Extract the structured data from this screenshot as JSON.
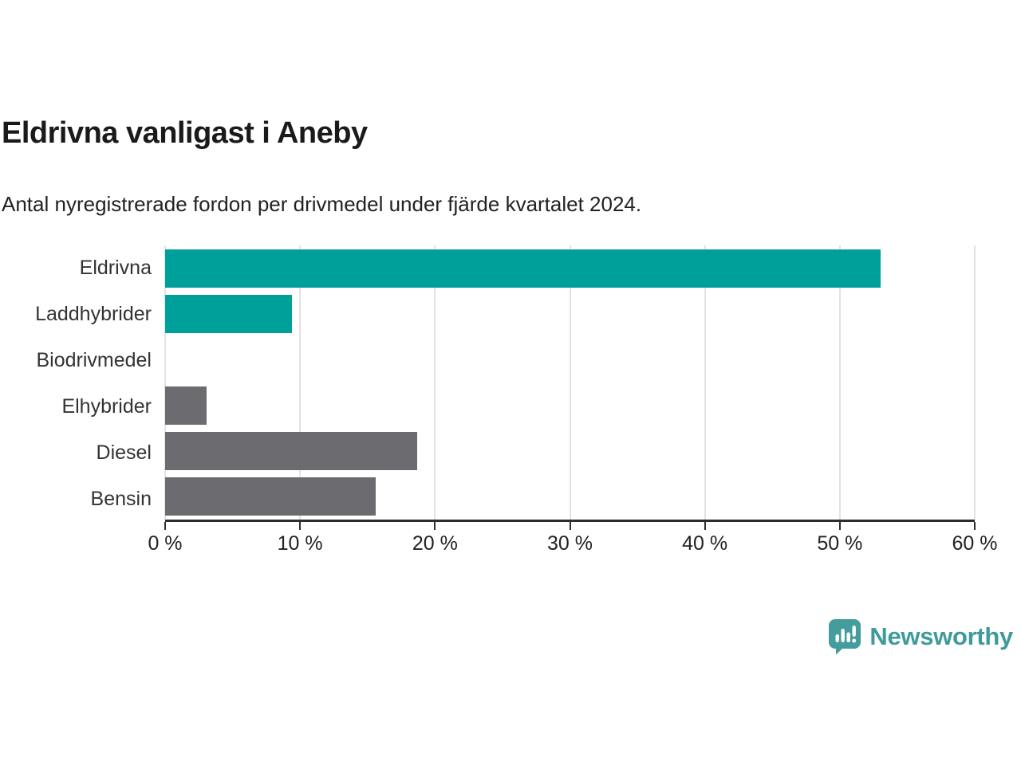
{
  "title": "Eldrivna vanligast i Aneby",
  "subtitle": "Antal nyregistrerade fordon per drivmedel under fjärde kvartalet 2024.",
  "branding": {
    "logo_text": "Newsworthy",
    "logo_color": "#3f9a9a",
    "icon_color": "#459c9c",
    "icon_name": "newsworthy-speech-bubble-chart-icon"
  },
  "colors": {
    "accent_teal": "#00a09a",
    "neutral_gray": "#6b6b70",
    "gridline": "#e3e3e3",
    "axis": "#2d2d2d",
    "title_text": "#1a1a1a",
    "body_text": "#222222",
    "label_text": "#333333"
  },
  "chart_data": {
    "type": "bar",
    "orientation": "horizontal",
    "title": "Eldrivna vanligast i Aneby",
    "subtitle": "Antal nyregistrerade fordon per drivmedel under fjärde kvartalet 2024.",
    "categories": [
      "Eldrivna",
      "Laddhybrider",
      "Biodrivmedel",
      "Elhybrider",
      "Diesel",
      "Bensin"
    ],
    "values": [
      53.0,
      9.4,
      0,
      3.1,
      18.7,
      15.6
    ],
    "unit": "%",
    "bar_colors": [
      "#00a09a",
      "#00a09a",
      "#6b6b70",
      "#6b6b70",
      "#6b6b70",
      "#6b6b70"
    ],
    "xlabel": "",
    "ylabel": "",
    "xlim": [
      0,
      60
    ],
    "x_axis": {
      "tick_values": [
        0,
        10,
        20,
        30,
        40,
        50,
        60
      ],
      "tick_labels": [
        "0 %",
        "10 %",
        "20 %",
        "30 %",
        "40 %",
        "50 %",
        "60 %"
      ]
    },
    "grid": true,
    "legend": false
  }
}
